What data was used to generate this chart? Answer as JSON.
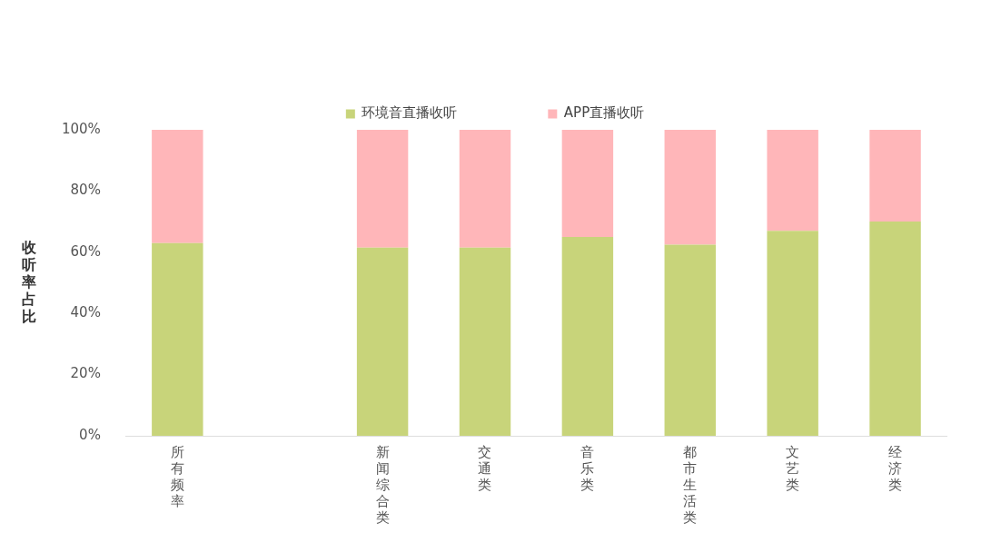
{
  "chart_data": {
    "type": "bar",
    "stacked": true,
    "ylabel": "收听率占比",
    "categories": [
      "所有频率",
      null,
      "新闻综合类",
      "交通类",
      "音乐类",
      "都市生活类",
      "文艺类",
      "经济类"
    ],
    "series": [
      {
        "name": "环境音直播收听",
        "color": "#c8d47a",
        "values": [
          63,
          null,
          61.5,
          61.5,
          65,
          62.5,
          67,
          70
        ]
      },
      {
        "name": "APP直播收听",
        "color": "#ffb6b9",
        "values": [
          37,
          null,
          38.5,
          38.5,
          35,
          37.5,
          33,
          30
        ]
      }
    ],
    "ylim": [
      0,
      100
    ],
    "yticks": [
      {
        "value": 0,
        "label": "0%"
      },
      {
        "value": 20,
        "label": "20%"
      },
      {
        "value": 40,
        "label": "40%"
      },
      {
        "value": 60,
        "label": "60%"
      },
      {
        "value": 80,
        "label": "80%"
      },
      {
        "value": 100,
        "label": "100%"
      }
    ],
    "grid": false,
    "legend": "top"
  }
}
